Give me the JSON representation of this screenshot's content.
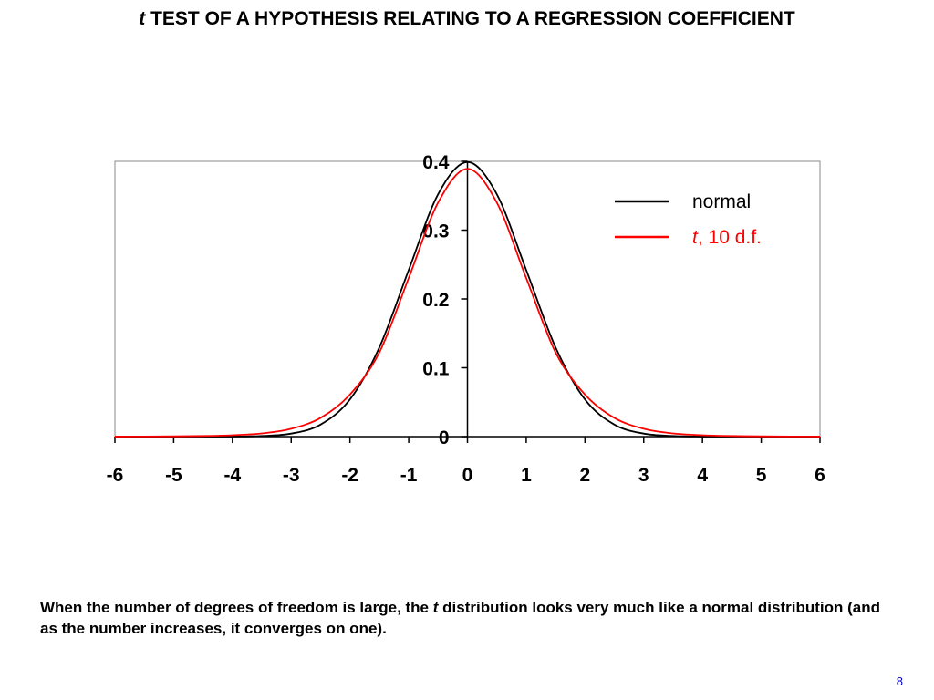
{
  "title": {
    "italic_prefix": "t",
    "text": " TEST OF A HYPOTHESIS RELATING TO A REGRESSION COEFFICIENT"
  },
  "caption": {
    "part1": "When the number of degrees of freedom is large, the ",
    "italic": "t",
    "part2": " distribution looks very much like a normal distribution (and as the number increases, it converges on one)."
  },
  "page_number": "8",
  "chart_data": {
    "type": "line",
    "xlim": [
      -6,
      6
    ],
    "ylim": [
      0,
      0.4
    ],
    "x_ticks": [
      "-6",
      "-5",
      "-4",
      "-3",
      "-2",
      "-1",
      "0",
      "1",
      "2",
      "3",
      "4",
      "5",
      "6"
    ],
    "y_ticks": [
      "0",
      "0.1",
      "0.2",
      "0.3",
      "0.4"
    ],
    "grid": false,
    "legend_position": "top-right",
    "x": [
      -6,
      -5.5,
      -5,
      -4.5,
      -4,
      -3.5,
      -3,
      -2.5,
      -2,
      -1.5,
      -1,
      -0.5,
      0,
      0.5,
      1,
      1.5,
      2,
      2.5,
      3,
      3.5,
      4,
      4.5,
      5,
      5.5,
      6
    ],
    "series": [
      {
        "name": "normal",
        "color": "#000000",
        "values": [
          0.0,
          0.0,
          0.0,
          0.0,
          0.0001,
          0.0009,
          0.0044,
          0.0175,
          0.054,
          0.1295,
          0.242,
          0.3521,
          0.3989,
          0.3521,
          0.242,
          0.1295,
          0.054,
          0.0175,
          0.0044,
          0.0009,
          0.0001,
          0.0,
          0.0,
          0.0,
          0.0
        ]
      },
      {
        "name_prefix": "t",
        "name": ", 10 d.f.",
        "color": "#ff0000",
        "values": [
          0.0001,
          0.0002,
          0.0004,
          0.0009,
          0.002,
          0.0046,
          0.0114,
          0.0272,
          0.0611,
          0.1222,
          0.2304,
          0.34,
          0.3891,
          0.34,
          0.2304,
          0.1222,
          0.0611,
          0.0272,
          0.0114,
          0.0046,
          0.002,
          0.0009,
          0.0004,
          0.0002,
          0.0001
        ]
      }
    ]
  }
}
